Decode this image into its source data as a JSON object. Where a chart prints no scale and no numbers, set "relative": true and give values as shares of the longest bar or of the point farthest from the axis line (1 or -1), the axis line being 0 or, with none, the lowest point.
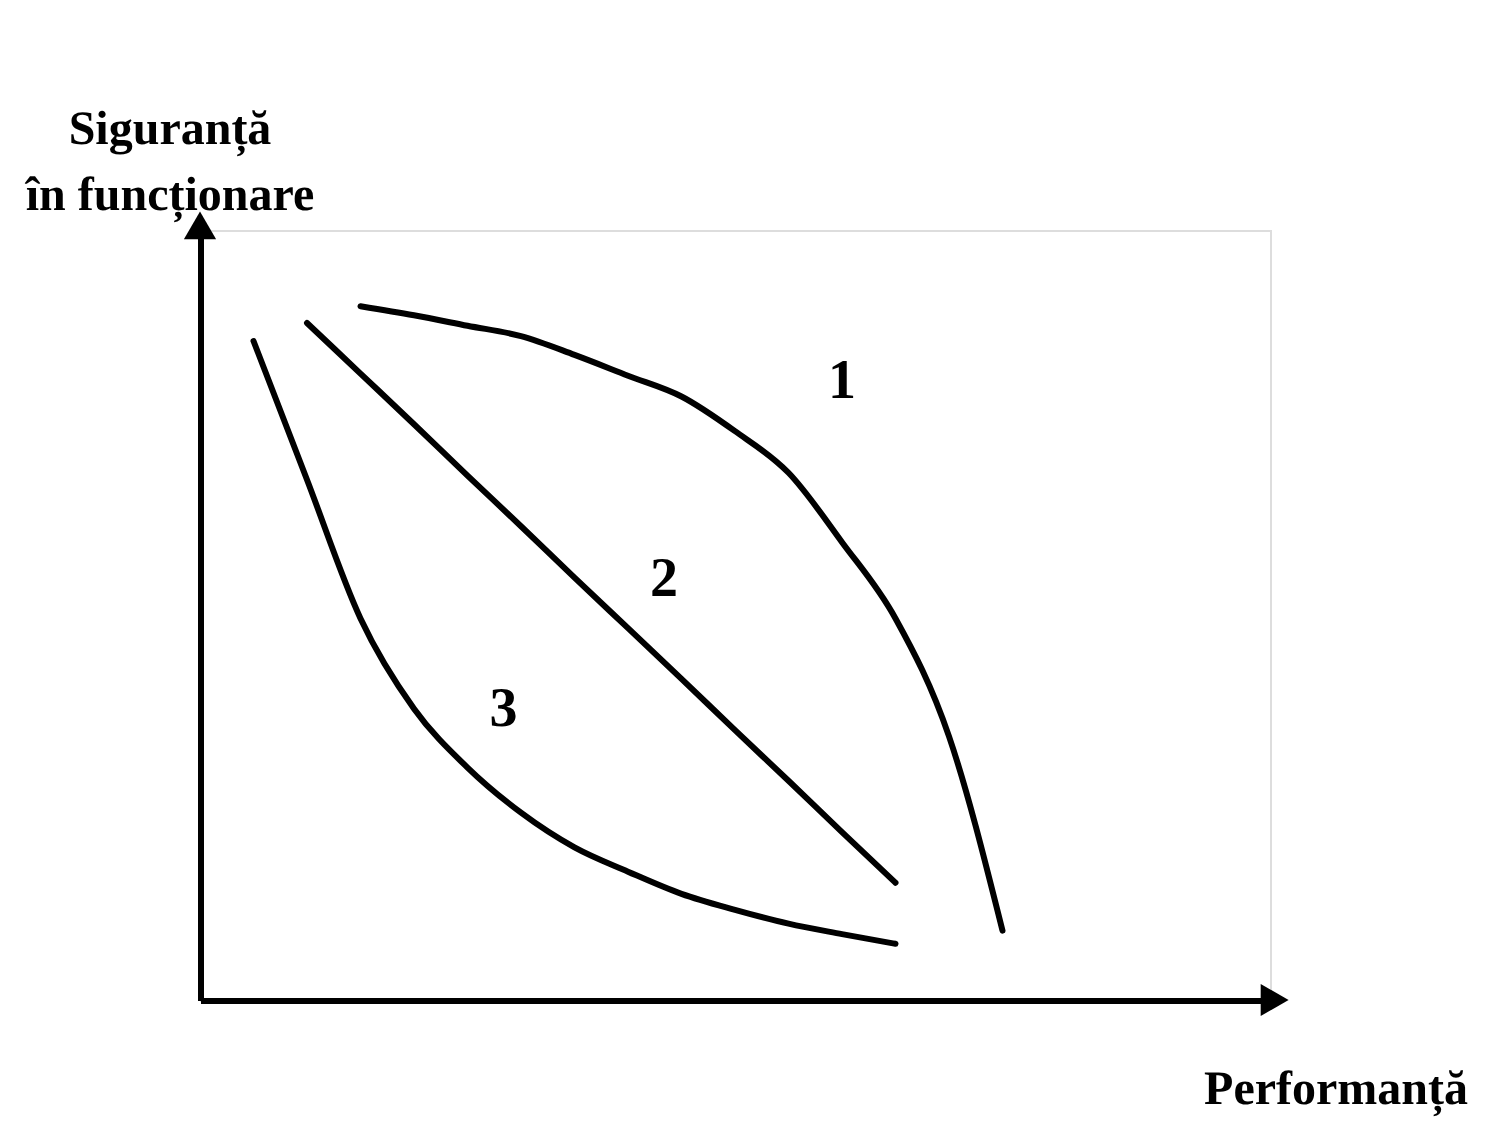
{
  "chart_data": {
    "type": "line",
    "relative": true,
    "xlabel": "Performanță",
    "ylabel": "Siguranță\nîn funcționare",
    "grid": false,
    "marker": "none",
    "line_style": "solid",
    "categories": [
      null,
      null,
      null,
      null,
      null,
      null,
      null,
      null,
      null,
      null,
      null,
      null,
      null,
      null,
      null,
      null,
      null,
      null,
      null,
      null,
      null
    ],
    "series": [
      {
        "name": "1",
        "color": "#000000",
        "values": [
          null,
          null,
          null,
          1.0,
          0.987,
          0.972,
          0.957,
          0.93,
          0.9,
          0.87,
          0.82,
          0.76,
          0.66,
          0.55,
          0.38,
          0.1,
          null,
          null,
          null,
          null,
          null
        ]
      },
      {
        "name": "2",
        "color": "#000000",
        "values": [
          null,
          null,
          0.976,
          0.903,
          0.83,
          0.756,
          0.683,
          0.609,
          0.536,
          0.463,
          0.389,
          0.316,
          0.242,
          0.169,
          null,
          null,
          null,
          null,
          null,
          null,
          null
        ]
      },
      {
        "name": "3",
        "color": "#000000",
        "values": [
          null,
          0.95,
          0.75,
          0.55,
          0.42,
          0.335,
          0.27,
          0.22,
          0.185,
          0.153,
          0.13,
          0.11,
          0.095,
          0.081,
          null,
          null,
          null,
          null,
          null,
          null,
          null
        ]
      }
    ]
  }
}
